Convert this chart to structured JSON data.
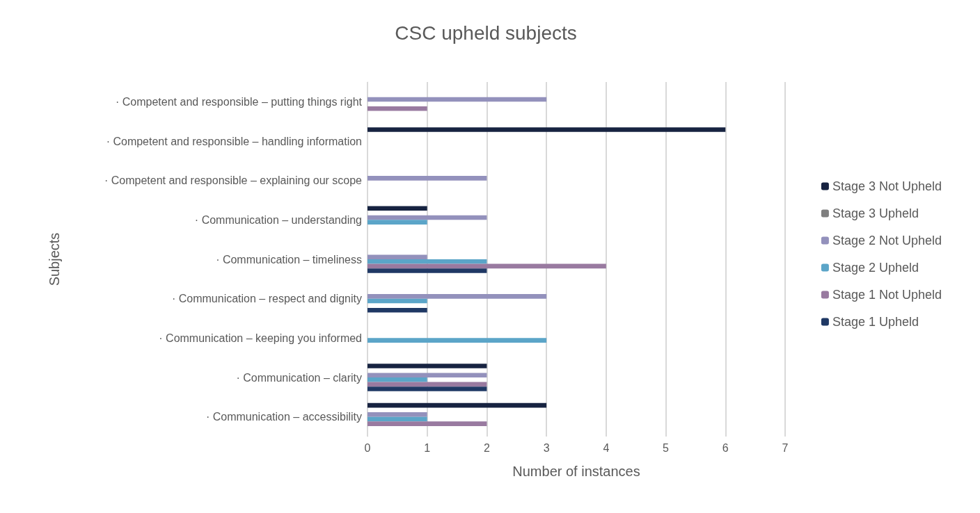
{
  "chart_data": {
    "type": "bar",
    "orientation": "horizontal",
    "title": "CSC upheld subjects",
    "xlabel": "Number of instances",
    "ylabel": "Subjects",
    "categories": [
      "· Competent and responsible – putting things right",
      "· Competent and responsible – handling information",
      "· Competent and responsible – explaining our scope",
      "· Communication – understanding",
      "· Communication – timeliness",
      "· Communication – respect and dignity",
      "· Communication – keeping you informed",
      "· Communication – clarity",
      "· Communication – accessibility"
    ],
    "series": [
      {
        "name": "Stage 3 Not Upheld",
        "color": "#172341",
        "values": [
          null,
          6,
          null,
          1,
          null,
          null,
          null,
          2,
          3
        ]
      },
      {
        "name": "Stage 3 Upheld",
        "color": "#7f7f7f",
        "values": [
          null,
          null,
          null,
          null,
          null,
          null,
          null,
          null,
          null
        ]
      },
      {
        "name": "Stage 2 Not Upheld",
        "color": "#9391bc",
        "values": [
          3,
          null,
          2,
          2,
          1,
          3,
          null,
          2,
          1
        ]
      },
      {
        "name": "Stage 2 Upheld",
        "color": "#5ba5c8",
        "values": [
          null,
          null,
          null,
          1,
          2,
          1,
          3,
          1,
          1
        ]
      },
      {
        "name": "Stage 1 Not Upheld",
        "color": "#997aa0",
        "values": [
          1,
          null,
          null,
          null,
          4,
          null,
          null,
          2,
          2
        ]
      },
      {
        "name": "Stage 1 Upheld",
        "color": "#1f3864",
        "values": [
          null,
          null,
          null,
          null,
          2,
          1,
          null,
          2,
          null
        ]
      }
    ],
    "xlim": [
      0,
      7
    ],
    "xticks": [
      0,
      1,
      2,
      3,
      4,
      5,
      6,
      7
    ],
    "grid": "x",
    "legend": "right"
  }
}
